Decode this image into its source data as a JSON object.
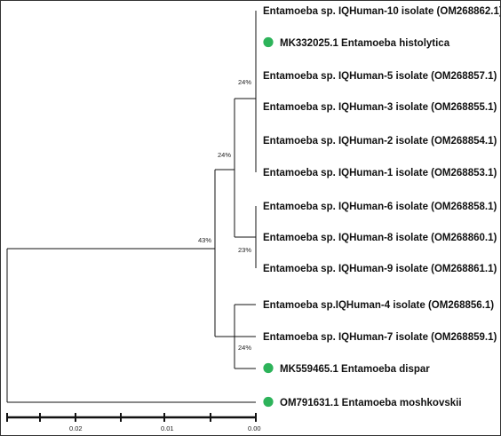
{
  "tree": {
    "leaves": [
      {
        "label": "Entamoeba sp. IQHuman-10 isolate (OM268862.1)",
        "marker": false
      },
      {
        "label": "MK332025.1 Entamoeba histolytica",
        "marker": true
      },
      {
        "label": "Entamoeba sp. IQHuman-5 isolate (OM268857.1)",
        "marker": false
      },
      {
        "label": "Entamoeba sp. IQHuman-3 isolate (OM268855.1)",
        "marker": false
      },
      {
        "label": "Entamoeba sp. IQHuman-2 isolate (OM268854.1)",
        "marker": false
      },
      {
        "label": "Entamoeba sp. IQHuman-1 isolate (OM268853.1)",
        "marker": false
      },
      {
        "label": "Entamoeba sp. IQHuman-6 isolate (OM268858.1)",
        "marker": false
      },
      {
        "label": "Entamoeba sp. IQHuman-8 isolate (OM268860.1)",
        "marker": false
      },
      {
        "label": "Entamoeba sp. IQHuman-9 isolate (OM268861.1)",
        "marker": false
      },
      {
        "label": "Entamoeba sp.IQHuman-4 isolate (OM268856.1)",
        "marker": false
      },
      {
        "label": "Entamoeba sp. IQHuman-7 isolate (OM268859.1)",
        "marker": false
      },
      {
        "label": "MK559465.1 Entamoeba dispar",
        "marker": true
      },
      {
        "label": "OM791631.1 Entamoeba moshkovskii",
        "marker": true
      }
    ],
    "support_values": {
      "root_ingroup": "43%",
      "histolytica_group": "24%",
      "top_subclade": "24%",
      "iq_6_8_9_clade": "23%",
      "dispar_group": "24%"
    },
    "scale_ticks": [
      "0.02",
      "0.01",
      "0.00"
    ],
    "marker_color": "#2db35a"
  }
}
